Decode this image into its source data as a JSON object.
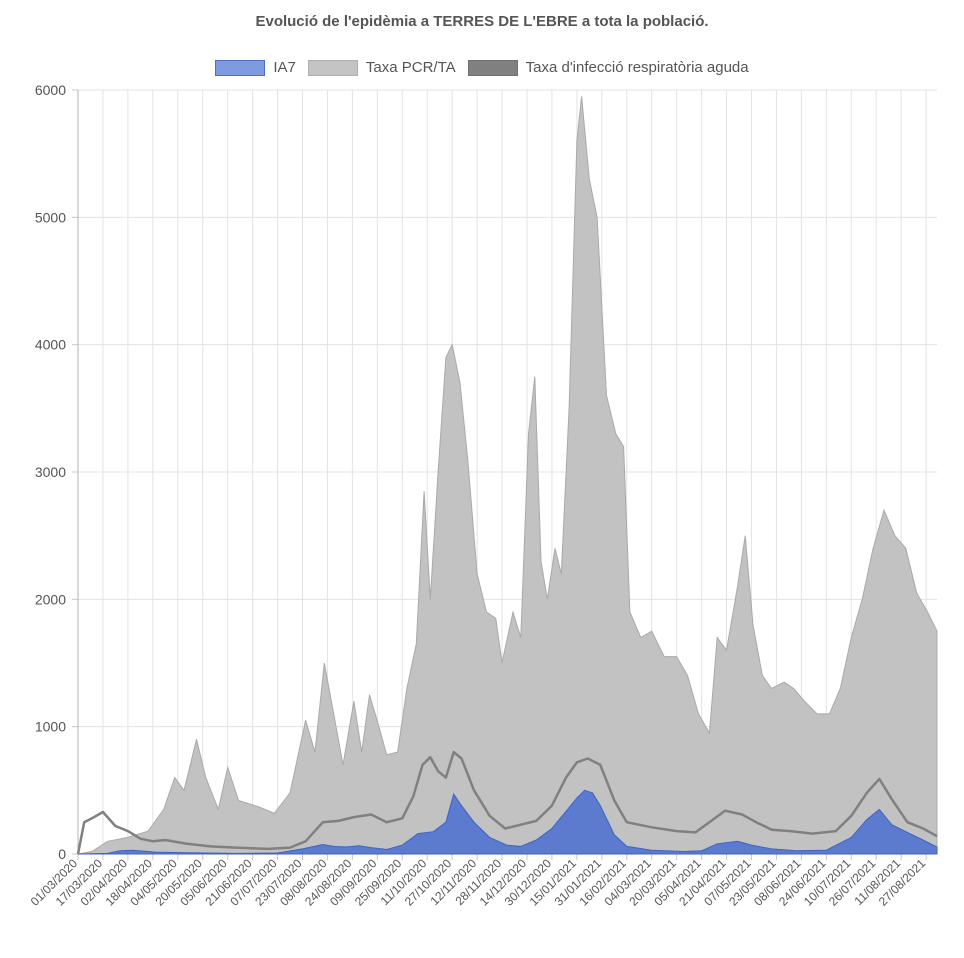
{
  "chart_data": {
    "type": "area",
    "title": "Evolució de l'epidèmia a TERRES DE L'EBRE a tota la població.",
    "xlabel": "",
    "ylabel": "",
    "ylim": [
      0,
      6000
    ],
    "yticks": [
      0,
      1000,
      2000,
      3000,
      4000,
      5000,
      6000
    ],
    "x_range": [
      "01/03/2020",
      "03/09/2021"
    ],
    "xtick_labels": [
      "01/03/2020",
      "17/03/2020",
      "02/04/2020",
      "18/04/2020",
      "04/05/2020",
      "20/05/2020",
      "05/06/2020",
      "21/06/2020",
      "07/07/2020",
      "23/07/2020",
      "08/08/2020",
      "24/08/2020",
      "09/09/2020",
      "25/09/2020",
      "11/10/2020",
      "27/10/2020",
      "12/11/2020",
      "28/11/2020",
      "14/12/2020",
      "30/12/2020",
      "15/01/2021",
      "31/01/2021",
      "16/02/2021",
      "04/03/2021",
      "20/03/2021",
      "05/04/2021",
      "21/04/2021",
      "07/05/2021",
      "23/05/2021",
      "08/06/2021",
      "24/06/2021",
      "10/07/2021",
      "26/07/2021",
      "11/08/2021",
      "27/08/2021"
    ],
    "grid": true,
    "legend_position": "top",
    "series": [
      {
        "name": "IA7",
        "color": "#4a6fcd",
        "points": [
          [
            "01/03/2020",
            0
          ],
          [
            "20/03/2020",
            5
          ],
          [
            "28/03/2020",
            25
          ],
          [
            "05/04/2020",
            30
          ],
          [
            "20/04/2020",
            15
          ],
          [
            "10/05/2020",
            10
          ],
          [
            "10/06/2020",
            5
          ],
          [
            "07/07/2020",
            8
          ],
          [
            "23/07/2020",
            40
          ],
          [
            "05/08/2020",
            75
          ],
          [
            "12/08/2020",
            60
          ],
          [
            "20/08/2020",
            55
          ],
          [
            "28/08/2020",
            65
          ],
          [
            "05/09/2020",
            50
          ],
          [
            "15/09/2020",
            35
          ],
          [
            "25/09/2020",
            70
          ],
          [
            "05/10/2020",
            160
          ],
          [
            "15/10/2020",
            175
          ],
          [
            "23/10/2020",
            250
          ],
          [
            "28/10/2020",
            470
          ],
          [
            "02/11/2020",
            380
          ],
          [
            "10/11/2020",
            250
          ],
          [
            "20/11/2020",
            130
          ],
          [
            "01/12/2020",
            70
          ],
          [
            "10/12/2020",
            60
          ],
          [
            "20/12/2020",
            110
          ],
          [
            "30/12/2020",
            200
          ],
          [
            "07/01/2021",
            320
          ],
          [
            "15/01/2021",
            440
          ],
          [
            "20/01/2021",
            500
          ],
          [
            "25/01/2021",
            480
          ],
          [
            "30/01/2021",
            380
          ],
          [
            "08/02/2021",
            150
          ],
          [
            "16/02/2021",
            60
          ],
          [
            "04/03/2021",
            30
          ],
          [
            "25/03/2021",
            20
          ],
          [
            "05/04/2021",
            25
          ],
          [
            "15/04/2021",
            80
          ],
          [
            "28/04/2021",
            100
          ],
          [
            "07/05/2021",
            70
          ],
          [
            "20/05/2021",
            40
          ],
          [
            "05/06/2021",
            25
          ],
          [
            "24/06/2021",
            30
          ],
          [
            "10/07/2021",
            130
          ],
          [
            "20/07/2021",
            270
          ],
          [
            "28/07/2021",
            350
          ],
          [
            "05/08/2021",
            230
          ],
          [
            "15/08/2021",
            170
          ],
          [
            "25/08/2021",
            110
          ],
          [
            "03/09/2021",
            55
          ]
        ]
      },
      {
        "name": "Taxa PCR/TA",
        "color": "#c0c0c0",
        "points": [
          [
            "01/03/2020",
            0
          ],
          [
            "10/03/2020",
            20
          ],
          [
            "20/03/2020",
            100
          ],
          [
            "02/04/2020",
            130
          ],
          [
            "15/04/2020",
            180
          ],
          [
            "25/04/2020",
            350
          ],
          [
            "02/05/2020",
            600
          ],
          [
            "08/05/2020",
            500
          ],
          [
            "16/05/2020",
            900
          ],
          [
            "22/05/2020",
            600
          ],
          [
            "30/05/2020",
            350
          ],
          [
            "05/06/2020",
            680
          ],
          [
            "12/06/2020",
            420
          ],
          [
            "25/06/2020",
            370
          ],
          [
            "05/07/2020",
            320
          ],
          [
            "15/07/2020",
            480
          ],
          [
            "25/07/2020",
            1050
          ],
          [
            "31/07/2020",
            800
          ],
          [
            "06/08/2020",
            1500
          ],
          [
            "12/08/2020",
            1100
          ],
          [
            "18/08/2020",
            700
          ],
          [
            "25/08/2020",
            1200
          ],
          [
            "30/08/2020",
            800
          ],
          [
            "04/09/2020",
            1250
          ],
          [
            "10/09/2020",
            1000
          ],
          [
            "15/09/2020",
            780
          ],
          [
            "22/09/2020",
            800
          ],
          [
            "28/09/2020",
            1300
          ],
          [
            "04/10/2020",
            1650
          ],
          [
            "09/10/2020",
            2850
          ],
          [
            "13/10/2020",
            2000
          ],
          [
            "18/10/2020",
            3000
          ],
          [
            "23/10/2020",
            3900
          ],
          [
            "27/10/2020",
            4000
          ],
          [
            "01/11/2020",
            3700
          ],
          [
            "06/11/2020",
            3100
          ],
          [
            "12/11/2020",
            2200
          ],
          [
            "18/11/2020",
            1900
          ],
          [
            "24/11/2020",
            1850
          ],
          [
            "28/11/2020",
            1500
          ],
          [
            "05/12/2020",
            1900
          ],
          [
            "10/12/2020",
            1700
          ],
          [
            "15/12/2020",
            3300
          ],
          [
            "19/12/2020",
            3750
          ],
          [
            "23/12/2020",
            2300
          ],
          [
            "27/12/2020",
            2000
          ],
          [
            "01/01/2021",
            2400
          ],
          [
            "05/01/2021",
            2200
          ],
          [
            "10/01/2021",
            3500
          ],
          [
            "15/01/2021",
            5600
          ],
          [
            "18/01/2021",
            5950
          ],
          [
            "23/01/2021",
            5300
          ],
          [
            "28/01/2021",
            5000
          ],
          [
            "03/02/2021",
            3600
          ],
          [
            "09/02/2021",
            3300
          ],
          [
            "14/02/2021",
            3200
          ],
          [
            "18/02/2021",
            1900
          ],
          [
            "25/02/2021",
            1700
          ],
          [
            "04/03/2021",
            1750
          ],
          [
            "12/03/2021",
            1550
          ],
          [
            "20/03/2021",
            1550
          ],
          [
            "27/03/2021",
            1400
          ],
          [
            "03/04/2021",
            1100
          ],
          [
            "10/04/2021",
            950
          ],
          [
            "15/04/2021",
            1700
          ],
          [
            "21/04/2021",
            1600
          ],
          [
            "28/04/2021",
            2100
          ],
          [
            "03/05/2021",
            2500
          ],
          [
            "08/05/2021",
            1800
          ],
          [
            "14/05/2021",
            1400
          ],
          [
            "20/05/2021",
            1300
          ],
          [
            "28/05/2021",
            1350
          ],
          [
            "03/06/2021",
            1300
          ],
          [
            "10/06/2021",
            1200
          ],
          [
            "18/06/2021",
            1100
          ],
          [
            "26/06/2021",
            1100
          ],
          [
            "03/07/2021",
            1300
          ],
          [
            "10/07/2021",
            1700
          ],
          [
            "17/07/2021",
            2000
          ],
          [
            "24/07/2021",
            2400
          ],
          [
            "31/07/2021",
            2700
          ],
          [
            "07/08/2021",
            2500
          ],
          [
            "14/08/2021",
            2400
          ],
          [
            "21/08/2021",
            2050
          ],
          [
            "28/08/2021",
            1900
          ],
          [
            "03/09/2021",
            1750
          ]
        ]
      },
      {
        "name": "Taxa d'infecció respiratòria aguda",
        "color": "#808080",
        "points": [
          [
            "01/03/2020",
            0
          ],
          [
            "05/03/2020",
            250
          ],
          [
            "10/03/2020",
            280
          ],
          [
            "17/03/2020",
            330
          ],
          [
            "25/03/2020",
            220
          ],
          [
            "02/04/2020",
            180
          ],
          [
            "10/04/2020",
            120
          ],
          [
            "18/04/2020",
            100
          ],
          [
            "26/04/2020",
            110
          ],
          [
            "10/05/2020",
            80
          ],
          [
            "25/05/2020",
            60
          ],
          [
            "10/06/2020",
            50
          ],
          [
            "01/07/2020",
            40
          ],
          [
            "15/07/2020",
            50
          ],
          [
            "25/07/2020",
            100
          ],
          [
            "05/08/2020",
            250
          ],
          [
            "15/08/2020",
            260
          ],
          [
            "25/08/2020",
            290
          ],
          [
            "05/09/2020",
            310
          ],
          [
            "15/09/2020",
            250
          ],
          [
            "25/09/2020",
            280
          ],
          [
            "02/10/2020",
            450
          ],
          [
            "08/10/2020",
            700
          ],
          [
            "13/10/2020",
            760
          ],
          [
            "18/10/2020",
            650
          ],
          [
            "23/10/2020",
            600
          ],
          [
            "28/10/2020",
            800
          ],
          [
            "02/11/2020",
            750
          ],
          [
            "10/11/2020",
            500
          ],
          [
            "20/11/2020",
            300
          ],
          [
            "30/11/2020",
            200
          ],
          [
            "10/12/2020",
            230
          ],
          [
            "20/12/2020",
            260
          ],
          [
            "30/12/2020",
            380
          ],
          [
            "08/01/2021",
            600
          ],
          [
            "15/01/2021",
            720
          ],
          [
            "22/01/2021",
            750
          ],
          [
            "30/01/2021",
            700
          ],
          [
            "08/02/2021",
            420
          ],
          [
            "16/02/2021",
            250
          ],
          [
            "04/03/2021",
            210
          ],
          [
            "20/03/2021",
            180
          ],
          [
            "01/04/2021",
            170
          ],
          [
            "10/04/2021",
            250
          ],
          [
            "20/04/2021",
            340
          ],
          [
            "01/05/2021",
            310
          ],
          [
            "10/05/2021",
            250
          ],
          [
            "20/05/2021",
            190
          ],
          [
            "01/06/2021",
            180
          ],
          [
            "15/06/2021",
            160
          ],
          [
            "30/06/2021",
            180
          ],
          [
            "10/07/2021",
            300
          ],
          [
            "20/07/2021",
            480
          ],
          [
            "28/07/2021",
            590
          ],
          [
            "05/08/2021",
            430
          ],
          [
            "15/08/2021",
            250
          ],
          [
            "25/08/2021",
            200
          ],
          [
            "03/09/2021",
            140
          ]
        ]
      }
    ]
  }
}
